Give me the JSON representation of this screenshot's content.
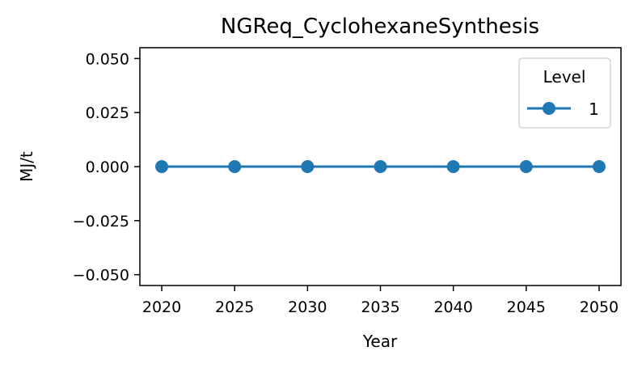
{
  "chart_data": {
    "type": "line",
    "title": "NGReq_CyclohexaneSynthesis",
    "xlabel": "Year",
    "ylabel": "MJ/t",
    "x": [
      2020,
      2025,
      2030,
      2035,
      2040,
      2045,
      2050
    ],
    "xticks": [
      "2020",
      "2025",
      "2030",
      "2035",
      "2040",
      "2045",
      "2050"
    ],
    "yticks": [
      "0.050",
      "0.025",
      "0.000",
      "−0.025",
      "−0.050"
    ],
    "ytick_values": [
      0.05,
      0.025,
      0,
      -0.025,
      -0.05
    ],
    "xlim": [
      2018.5,
      2051.5
    ],
    "ylim": [
      -0.055,
      0.055
    ],
    "series": [
      {
        "name": "1",
        "values": [
          0,
          0,
          0,
          0,
          0,
          0,
          0
        ],
        "color": "#1f77b4",
        "marker": "circle"
      }
    ],
    "legend": {
      "title": "Level",
      "placement": "top-right"
    },
    "grid": false
  }
}
